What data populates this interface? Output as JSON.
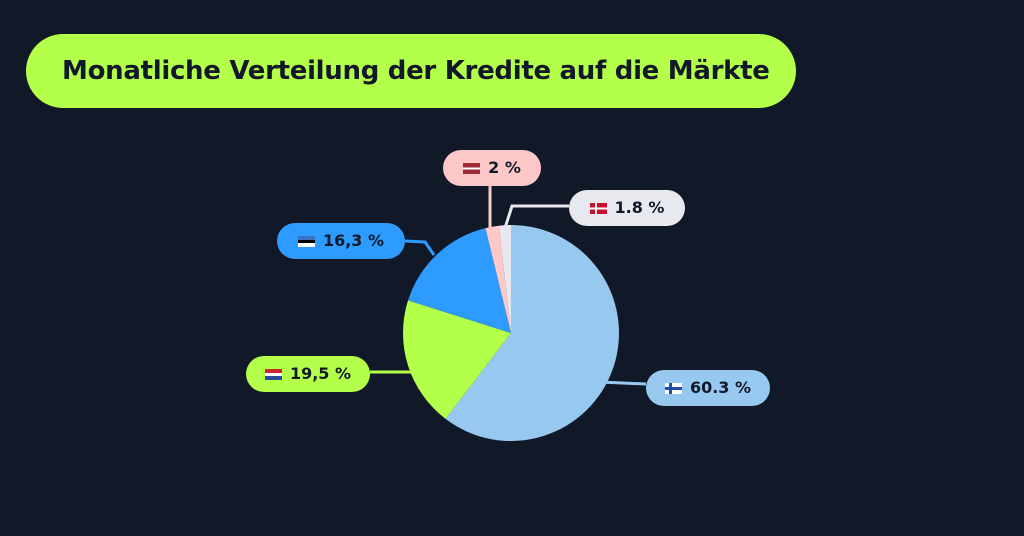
{
  "title": "Monatliche Verteilung der Kredite auf die Märkte",
  "colors": {
    "background": "#111827",
    "title_bg": "#b4ff4a"
  },
  "chart_data": {
    "type": "pie",
    "start": "top",
    "direction": "clockwise",
    "slices": [
      {
        "flag": "finland-flag-icon",
        "label": "60.3 %",
        "value": 60.3,
        "color": "#96c8f0"
      },
      {
        "flag": "netherlands-flag-icon",
        "label": "19,5 %",
        "value": 19.5,
        "color": "#b4ff4a"
      },
      {
        "flag": "estonia-flag-icon",
        "label": "16,3 %",
        "value": 16.3,
        "color": "#2d9bff"
      },
      {
        "flag": "latvia-flag-icon",
        "label": "2 %",
        "value": 2,
        "color": "#ffc8c8"
      },
      {
        "flag": "denmark-flag-icon",
        "label": "1.8 %",
        "value": 1.8,
        "color": "#e8e9ee"
      }
    ]
  }
}
